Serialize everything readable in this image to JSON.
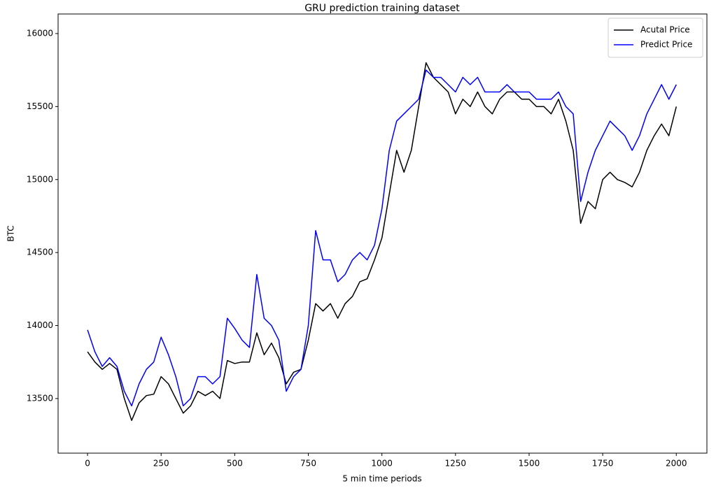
{
  "chart_data": {
    "type": "line",
    "title": "GRU prediction training dataset",
    "x_label": "5 min time periods",
    "y_label": "BTC",
    "x": [
      0,
      25,
      50,
      75,
      100,
      125,
      150,
      175,
      200,
      225,
      250,
      275,
      300,
      325,
      350,
      375,
      400,
      425,
      450,
      475,
      500,
      525,
      550,
      575,
      600,
      625,
      650,
      675,
      700,
      725,
      750,
      775,
      800,
      825,
      850,
      875,
      900,
      925,
      950,
      975,
      1000,
      1025,
      1050,
      1075,
      1100,
      1125,
      1150,
      1175,
      1200,
      1225,
      1250,
      1275,
      1300,
      1325,
      1350,
      1375,
      1400,
      1425,
      1450,
      1475,
      1500,
      1525,
      1550,
      1575,
      1600,
      1625,
      1650,
      1675,
      1700,
      1725,
      1750,
      1775,
      1800,
      1825,
      1850,
      1875,
      1900,
      1925,
      1950,
      1975,
      2000
    ],
    "series": [
      {
        "name": "Acutal Price",
        "color": "#000000",
        "values": [
          13820,
          13750,
          13700,
          13740,
          13700,
          13500,
          13350,
          13470,
          13520,
          13530,
          13650,
          13600,
          13500,
          13400,
          13450,
          13550,
          13520,
          13550,
          13500,
          13760,
          13740,
          13750,
          13750,
          13950,
          13800,
          13880,
          13780,
          13600,
          13680,
          13700,
          13900,
          14150,
          14100,
          14150,
          14050,
          14150,
          14200,
          14300,
          14320,
          14450,
          14600,
          14900,
          15200,
          15050,
          15200,
          15500,
          15800,
          15700,
          15650,
          15600,
          15450,
          15550,
          15500,
          15600,
          15500,
          15450,
          15550,
          15600,
          15600,
          15550,
          15550,
          15500,
          15500,
          15450,
          15550,
          15400,
          15200,
          14700,
          14850,
          14800,
          15000,
          15050,
          15000,
          14980,
          14950,
          15050,
          15200,
          15300,
          15380,
          15300,
          15500
        ]
      },
      {
        "name": "Predict Price",
        "color": "#0000ff",
        "values": [
          13970,
          13820,
          13720,
          13780,
          13720,
          13550,
          13450,
          13600,
          13700,
          13750,
          13920,
          13800,
          13650,
          13450,
          13500,
          13650,
          13650,
          13600,
          13650,
          14050,
          13980,
          13900,
          13850,
          14350,
          14050,
          14000,
          13900,
          13550,
          13650,
          13700,
          14000,
          14650,
          14450,
          14450,
          14300,
          14350,
          14450,
          14500,
          14450,
          14550,
          14800,
          15200,
          15400,
          15450,
          15500,
          15550,
          15750,
          15700,
          15700,
          15650,
          15600,
          15700,
          15650,
          15700,
          15600,
          15600,
          15600,
          15650,
          15600,
          15600,
          15600,
          15550,
          15550,
          15550,
          15600,
          15500,
          15450,
          14850,
          15050,
          15200,
          15300,
          15400,
          15350,
          15300,
          15200,
          15300,
          15450,
          15550,
          15650,
          15550,
          15650
        ]
      }
    ],
    "xlim": [
      -100,
      2104
    ],
    "ylim": [
      13126,
      16134
    ],
    "xticks": [
      0,
      250,
      500,
      750,
      1000,
      1250,
      1500,
      1750,
      2000
    ],
    "yticks": [
      13500,
      14000,
      14500,
      15000,
      15500,
      16000
    ],
    "grid": false,
    "legend": "upper right"
  }
}
